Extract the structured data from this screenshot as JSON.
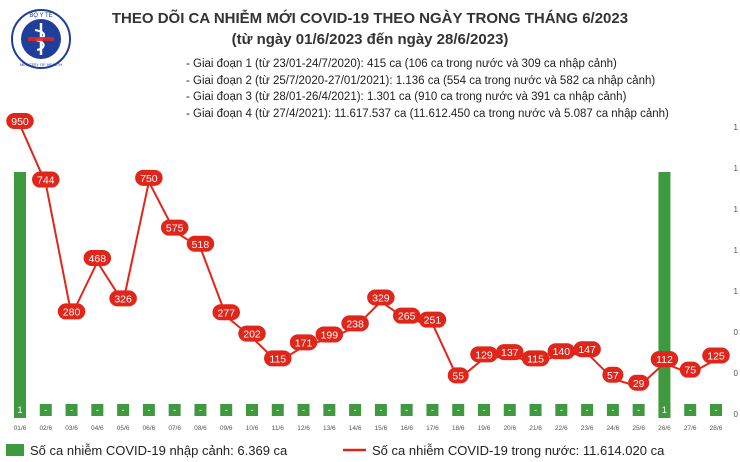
{
  "header": {
    "title": "THEO DÕI CA NHIỄM MỚI COVID-19 THEO NGÀY TRONG THÁNG 6/2023",
    "subtitle": "(từ ngày 01/6/2023 đến ngày 28/6/2023)",
    "notes": [
      "- Giai đoạn 1 (từ 23/01-24/7/2020): 415 ca (106 ca trong nước và 309 ca nhập cảnh)",
      "- Giai đoạn 2 (từ 25/7/2020-27/01/2021): 1.136 ca (554 ca trong nước và 582 ca nhập cảnh)",
      "- Giai đoạn 3 (từ 28/01-26/4/2021): 1.301 ca (910 ca trong nước và 391 ca nhập cảnh)",
      "- Giai đoạn 4 (từ 27/4/2021): 11.617.537 ca (11.612.450 ca trong nước và 5.087 ca nhập cảnh)"
    ]
  },
  "logo": {
    "top_text": "BỘ Y TẾ",
    "bottom_text": "MINISTRY OF HEALTH",
    "color": "#1f3f9a"
  },
  "colors": {
    "bar": "#3f9a3f",
    "line": "#e0261b",
    "label_bg": "#e0261b",
    "bar_label_bg": "#3f9a3f"
  },
  "chart_data": {
    "type": "bar+line",
    "categories": [
      "01/6",
      "02/6",
      "03/6",
      "04/6",
      "05/6",
      "06/6",
      "07/6",
      "08/6",
      "09/6",
      "10/6",
      "11/6",
      "12/6",
      "13/6",
      "14/6",
      "15/6",
      "16/6",
      "17/6",
      "18/6",
      "19/6",
      "20/6",
      "21/6",
      "22/6",
      "23/6",
      "24/6",
      "25/6",
      "26/6",
      "27/6",
      "28/6"
    ],
    "series": [
      {
        "name": "Số ca nhiễm COVID-19 nhập cảnh: 6.369 ca",
        "type": "bar",
        "values": [
          1,
          0,
          0,
          0,
          0,
          0,
          0,
          0,
          0,
          0,
          0,
          0,
          0,
          0,
          0,
          0,
          0,
          0,
          0,
          0,
          0,
          0,
          0,
          0,
          0,
          1,
          0,
          0
        ],
        "labels": [
          "1",
          "-",
          "-",
          "-",
          "-",
          "-",
          "-",
          "-",
          "-",
          "-",
          "-",
          "-",
          "-",
          "-",
          "-",
          "-",
          "-",
          "-",
          "-",
          "-",
          "-",
          "-",
          "-",
          "-",
          "-",
          "1",
          "-",
          "-"
        ]
      },
      {
        "name": "Số ca nhiễm COVID-19 trong nước: 11.614.020 ca",
        "type": "line",
        "values": [
          950,
          744,
          280,
          468,
          326,
          750,
          575,
          518,
          277,
          202,
          115,
          171,
          199,
          238,
          329,
          265,
          251,
          55,
          129,
          137,
          115,
          140,
          147,
          57,
          29,
          112,
          75,
          125
        ]
      }
    ],
    "right_axis_ticks": [
      "1",
      "1",
      "1",
      "1",
      "1",
      "0",
      "0",
      "0"
    ]
  }
}
